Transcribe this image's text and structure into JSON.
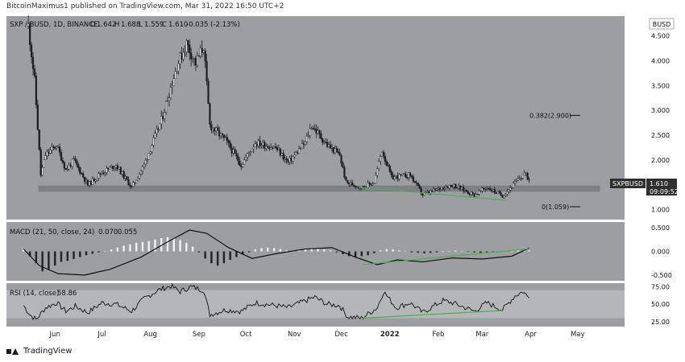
{
  "header": {
    "text": "BitcoinMaximus1 published on TradingView.com, Mar 31, 2022 16:50 UTC+2"
  },
  "footer": {
    "brand": "TradingView"
  },
  "colors": {
    "panel": "#9c9ea2",
    "rsi_band": "#b4b6ba",
    "candle": "#1c1c1c",
    "support_zone": "#7f8186",
    "green_line": "#4caf50",
    "macd_line": "#000000",
    "fib_line": "#111111",
    "price_tag": "#2f2f2f"
  },
  "chart_data": [
    {
      "type": "candlestick",
      "title": "SXP / BUSD, 1D, BINANCE",
      "ohlc": {
        "o_label": "O",
        "o": "1.642",
        "h_label": "H",
        "h": "1.688",
        "l_label": "L",
        "l": "1.559",
        "c_label": "C",
        "c": "1.610",
        "change": "-0.035 (-2.13%)"
      },
      "currency_label": "BUSD",
      "y_ticks": [
        1.0,
        1.5,
        2.0,
        2.5,
        3.0,
        3.5,
        4.0,
        4.5
      ],
      "y_tick_labels": [
        "1.000",
        "1.500",
        "2.000",
        "2.500",
        "3.000",
        "3.500",
        "4.000",
        "4.500"
      ],
      "ylim": [
        0.8,
        4.9
      ],
      "x_ticks": [
        "Jun",
        "Jul",
        "Aug",
        "Sep",
        "Oct",
        "Nov",
        "Dec",
        "2022",
        "Feb",
        "Mar",
        "Apr",
        "May"
      ],
      "price_label": {
        "symbol": "SXPBUSD",
        "price": "1.610",
        "countdown": "09:09:52"
      },
      "fib_levels": [
        {
          "label": "0.382(2.900)",
          "value": 2.9
        },
        {
          "label": "0(1.059)",
          "value": 1.059
        }
      ],
      "support_zone": [
        1.37,
        1.48
      ],
      "closes": [
        {
          "date": "2021-05-15",
          "value": 4.7
        },
        {
          "date": "2021-05-19",
          "value": 3.6
        },
        {
          "date": "2021-05-23",
          "value": 1.7
        },
        {
          "date": "2021-05-26",
          "value": 2.1
        },
        {
          "date": "2021-06-02",
          "value": 2.3
        },
        {
          "date": "2021-06-08",
          "value": 1.8
        },
        {
          "date": "2021-06-13",
          "value": 2.0
        },
        {
          "date": "2021-06-22",
          "value": 1.5
        },
        {
          "date": "2021-07-01",
          "value": 1.75
        },
        {
          "date": "2021-07-10",
          "value": 1.9
        },
        {
          "date": "2021-07-20",
          "value": 1.45
        },
        {
          "date": "2021-07-28",
          "value": 1.9
        },
        {
          "date": "2021-08-08",
          "value": 2.8
        },
        {
          "date": "2021-08-18",
          "value": 3.9
        },
        {
          "date": "2021-08-24",
          "value": 4.35
        },
        {
          "date": "2021-08-30",
          "value": 3.95
        },
        {
          "date": "2021-09-04",
          "value": 4.3
        },
        {
          "date": "2021-09-08",
          "value": 2.7
        },
        {
          "date": "2021-09-18",
          "value": 2.4
        },
        {
          "date": "2021-09-28",
          "value": 1.9
        },
        {
          "date": "2021-10-07",
          "value": 2.35
        },
        {
          "date": "2021-10-20",
          "value": 2.25
        },
        {
          "date": "2021-10-28",
          "value": 1.95
        },
        {
          "date": "2021-11-08",
          "value": 2.35
        },
        {
          "date": "2021-11-12",
          "value": 2.7
        },
        {
          "date": "2021-11-22",
          "value": 2.3
        },
        {
          "date": "2021-11-30",
          "value": 2.1
        },
        {
          "date": "2021-12-04",
          "value": 1.55
        },
        {
          "date": "2021-12-14",
          "value": 1.45
        },
        {
          "date": "2021-12-22",
          "value": 1.55
        },
        {
          "date": "2021-12-27",
          "value": 2.2
        },
        {
          "date": "2022-01-02",
          "value": 1.65
        },
        {
          "date": "2022-01-14",
          "value": 1.7
        },
        {
          "date": "2022-01-22",
          "value": 1.3
        },
        {
          "date": "2022-02-04",
          "value": 1.45
        },
        {
          "date": "2022-02-10",
          "value": 1.5
        },
        {
          "date": "2022-02-24",
          "value": 1.3
        },
        {
          "date": "2022-03-04",
          "value": 1.45
        },
        {
          "date": "2022-03-14",
          "value": 1.28
        },
        {
          "date": "2022-03-28",
          "value": 1.73
        },
        {
          "date": "2022-03-31",
          "value": 1.61
        }
      ]
    },
    {
      "type": "line",
      "title": "MACD (21, 50, close, 24)",
      "values_text": [
        "0.070",
        "0.055"
      ],
      "y_ticks": [
        -0.5,
        0.0,
        0.5
      ],
      "y_tick_labels": [
        "-0.500",
        "0.000",
        "0.500"
      ],
      "ylim": [
        -0.62,
        0.62
      ],
      "macd_line": [
        {
          "date": "2021-05-12",
          "value": 0.05
        },
        {
          "date": "2021-05-22",
          "value": -0.3
        },
        {
          "date": "2021-06-03",
          "value": -0.47
        },
        {
          "date": "2021-06-20",
          "value": -0.5
        },
        {
          "date": "2021-07-06",
          "value": -0.38
        },
        {
          "date": "2021-07-26",
          "value": -0.12
        },
        {
          "date": "2021-08-12",
          "value": 0.2
        },
        {
          "date": "2021-08-26",
          "value": 0.45
        },
        {
          "date": "2021-09-06",
          "value": 0.38
        },
        {
          "date": "2021-09-20",
          "value": 0.08
        },
        {
          "date": "2021-10-05",
          "value": -0.15
        },
        {
          "date": "2021-10-20",
          "value": -0.05
        },
        {
          "date": "2021-11-08",
          "value": 0.05
        },
        {
          "date": "2021-11-25",
          "value": 0.08
        },
        {
          "date": "2021-12-10",
          "value": -0.12
        },
        {
          "date": "2021-12-24",
          "value": -0.28
        },
        {
          "date": "2022-01-06",
          "value": -0.18
        },
        {
          "date": "2022-01-22",
          "value": -0.22
        },
        {
          "date": "2022-02-10",
          "value": -0.14
        },
        {
          "date": "2022-03-01",
          "value": -0.16
        },
        {
          "date": "2022-03-20",
          "value": -0.1
        },
        {
          "date": "2022-03-31",
          "value": 0.07
        }
      ],
      "signal_line": [
        {
          "date": "2021-12-15",
          "value": -0.28
        },
        {
          "date": "2022-03-31",
          "value": 0.055
        }
      ],
      "histogram_dates": [
        "2021-05-12",
        "2021-05-16",
        "2021-05-20",
        "2021-05-24",
        "2021-05-28",
        "2021-06-01",
        "2021-06-05",
        "2021-06-09",
        "2021-06-13",
        "2021-06-17",
        "2021-06-21",
        "2021-06-25",
        "2021-06-29",
        "2021-07-03",
        "2021-07-07",
        "2021-07-11",
        "2021-07-15",
        "2021-07-19",
        "2021-07-23",
        "2021-07-27",
        "2021-07-31",
        "2021-08-04",
        "2021-08-08",
        "2021-08-12",
        "2021-08-16",
        "2021-08-20",
        "2021-08-24",
        "2021-08-28",
        "2021-09-01",
        "2021-09-05",
        "2021-09-09",
        "2021-09-13",
        "2021-09-17",
        "2021-09-21",
        "2021-09-25",
        "2021-09-29",
        "2021-10-03",
        "2021-10-07",
        "2021-10-11",
        "2021-10-15",
        "2021-10-19",
        "2021-10-23",
        "2021-10-27",
        "2021-10-31",
        "2021-11-04",
        "2021-11-08",
        "2021-11-12",
        "2021-11-16",
        "2021-11-20",
        "2021-11-24",
        "2021-11-28",
        "2021-12-02",
        "2021-12-06",
        "2021-12-10",
        "2021-12-14",
        "2021-12-18",
        "2021-12-22",
        "2021-12-26",
        "2021-12-30",
        "2022-01-03",
        "2022-01-07",
        "2022-01-11",
        "2022-01-15",
        "2022-01-19",
        "2022-01-23",
        "2022-01-27",
        "2022-01-31",
        "2022-02-04",
        "2022-02-08",
        "2022-02-12",
        "2022-02-16",
        "2022-02-20",
        "2022-02-24",
        "2022-02-28",
        "2022-03-04",
        "2022-03-08",
        "2022-03-12",
        "2022-03-16",
        "2022-03-20",
        "2022-03-24",
        "2022-03-28",
        "2022-03-31"
      ],
      "histogram": [
        0.05,
        -0.1,
        -0.25,
        -0.42,
        -0.38,
        -0.3,
        -0.22,
        -0.2,
        -0.16,
        -0.12,
        -0.08,
        -0.05,
        -0.02,
        0.0,
        0.04,
        0.08,
        0.12,
        0.15,
        0.18,
        0.2,
        0.22,
        0.25,
        0.28,
        0.3,
        0.28,
        0.24,
        0.18,
        0.1,
        -0.02,
        -0.15,
        -0.25,
        -0.3,
        -0.25,
        -0.18,
        -0.12,
        -0.06,
        -0.02,
        0.04,
        0.07,
        0.08,
        0.07,
        0.05,
        0.02,
        0.0,
        0.03,
        0.05,
        0.07,
        0.06,
        0.04,
        0.02,
        -0.02,
        -0.06,
        -0.1,
        -0.12,
        -0.1,
        -0.08,
        -0.04,
        0.02,
        0.05,
        0.04,
        0.02,
        0.0,
        -0.02,
        -0.03,
        -0.04,
        -0.03,
        -0.02,
        0.0,
        0.01,
        0.02,
        0.0,
        -0.01,
        -0.02,
        -0.03,
        -0.02,
        -0.01,
        0.0,
        0.01,
        0.02,
        0.03,
        0.03,
        0.02
      ]
    },
    {
      "type": "line",
      "title": "RSI (14, close)",
      "value_text": "58.86",
      "y_ticks": [
        25,
        50,
        75
      ],
      "y_tick_labels": [
        "25.00",
        "50.00",
        "75.00"
      ],
      "ylim": [
        18,
        80
      ],
      "band": [
        30,
        70
      ],
      "rsi": [
        {
          "date": "2021-05-12",
          "value": 48
        },
        {
          "date": "2021-05-16",
          "value": 35
        },
        {
          "date": "2021-05-20",
          "value": 28
        },
        {
          "date": "2021-05-26",
          "value": 45
        },
        {
          "date": "2021-06-02",
          "value": 52
        },
        {
          "date": "2021-06-08",
          "value": 40
        },
        {
          "date": "2021-06-14",
          "value": 47
        },
        {
          "date": "2021-06-22",
          "value": 38
        },
        {
          "date": "2021-07-01",
          "value": 52
        },
        {
          "date": "2021-07-10",
          "value": 50
        },
        {
          "date": "2021-07-20",
          "value": 40
        },
        {
          "date": "2021-07-28",
          "value": 58
        },
        {
          "date": "2021-08-06",
          "value": 70
        },
        {
          "date": "2021-08-14",
          "value": 76
        },
        {
          "date": "2021-08-20",
          "value": 68
        },
        {
          "date": "2021-08-27",
          "value": 75
        },
        {
          "date": "2021-09-04",
          "value": 70
        },
        {
          "date": "2021-09-08",
          "value": 35
        },
        {
          "date": "2021-09-18",
          "value": 42
        },
        {
          "date": "2021-09-28",
          "value": 40
        },
        {
          "date": "2021-10-07",
          "value": 52
        },
        {
          "date": "2021-10-20",
          "value": 48
        },
        {
          "date": "2021-10-28",
          "value": 45
        },
        {
          "date": "2021-11-08",
          "value": 55
        },
        {
          "date": "2021-11-14",
          "value": 60
        },
        {
          "date": "2021-11-22",
          "value": 50
        },
        {
          "date": "2021-11-30",
          "value": 48
        },
        {
          "date": "2021-12-05",
          "value": 32
        },
        {
          "date": "2021-12-14",
          "value": 30
        },
        {
          "date": "2021-12-24",
          "value": 45
        },
        {
          "date": "2021-12-28",
          "value": 68
        },
        {
          "date": "2022-01-05",
          "value": 45
        },
        {
          "date": "2022-01-14",
          "value": 52
        },
        {
          "date": "2022-01-22",
          "value": 38
        },
        {
          "date": "2022-02-04",
          "value": 55
        },
        {
          "date": "2022-02-10",
          "value": 52
        },
        {
          "date": "2022-02-24",
          "value": 40
        },
        {
          "date": "2022-03-04",
          "value": 52
        },
        {
          "date": "2022-03-14",
          "value": 42
        },
        {
          "date": "2022-03-22",
          "value": 62
        },
        {
          "date": "2022-03-27",
          "value": 68
        },
        {
          "date": "2022-03-31",
          "value": 59
        }
      ],
      "green_line": [
        {
          "date": "2021-12-14",
          "value": 30
        },
        {
          "date": "2022-03-14",
          "value": 41
        }
      ]
    }
  ]
}
